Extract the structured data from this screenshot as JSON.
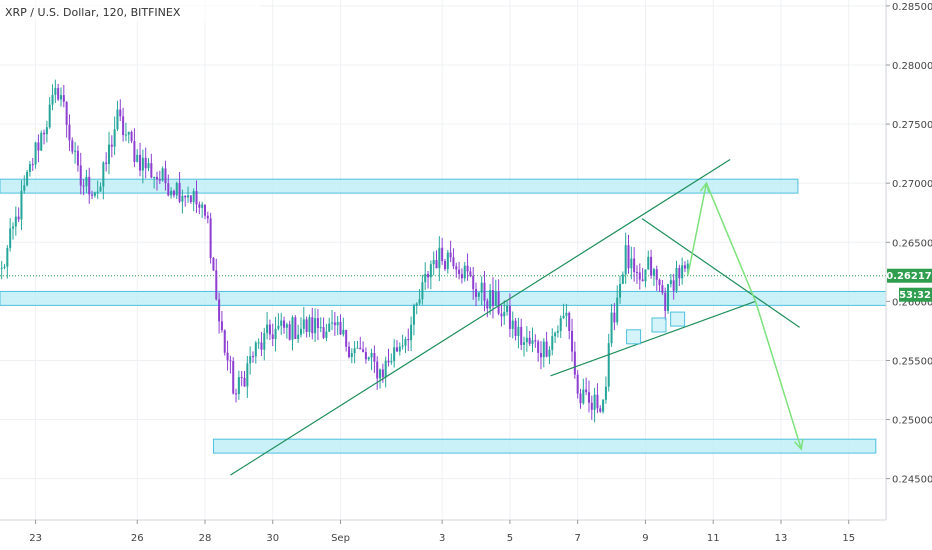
{
  "header": {
    "title": "XRP / U.S. Dollar, 120, BITFINEX"
  },
  "price_axis": {
    "ticks": [
      {
        "value": 0.285,
        "label": "0.28500"
      },
      {
        "value": 0.28,
        "label": "0.28000"
      },
      {
        "value": 0.275,
        "label": "0.27500"
      },
      {
        "value": 0.27,
        "label": "0.27000"
      },
      {
        "value": 0.265,
        "label": "0.26500"
      },
      {
        "value": 0.26,
        "label": "0.26000"
      },
      {
        "value": 0.255,
        "label": "0.25500"
      },
      {
        "value": 0.25,
        "label": "0.25000"
      },
      {
        "value": 0.245,
        "label": "0.24500"
      }
    ],
    "current_price": {
      "value": 0.26217,
      "label": "0.26217"
    },
    "countdown": "53:32"
  },
  "date_axis": {
    "ticks": [
      {
        "day": 23,
        "label": "23"
      },
      {
        "day": 26,
        "label": "26"
      },
      {
        "day": 28,
        "label": "28"
      },
      {
        "day": 30,
        "label": "30"
      },
      {
        "day": 32,
        "label": "Sep"
      },
      {
        "day": 35,
        "label": "3"
      },
      {
        "day": 37,
        "label": "5"
      },
      {
        "day": 39,
        "label": "7"
      },
      {
        "day": 41,
        "label": "9"
      },
      {
        "day": 43,
        "label": "11"
      },
      {
        "day": 45,
        "label": "13"
      },
      {
        "day": 47,
        "label": "15"
      }
    ]
  },
  "colors": {
    "up": "#26a69a",
    "down": "#8e3fd1",
    "zone_fill": "#b9ecf5",
    "zone_stroke": "#4cc0de",
    "trendline": "#1e8e5a",
    "projection": "#7de27d",
    "price_line": "#2e9e4e",
    "grid": "#eef0f3",
    "axis": "#d0d3da"
  },
  "chart_data": {
    "type": "candlestick",
    "symbol": "XRP / U.S. Dollar",
    "interval": "120",
    "exchange": "BITFINEX",
    "x_axis": "day (August numbering; Sep 1 = 32)",
    "ylim": [
      0.2415,
      0.2855
    ],
    "xlim": [
      21.95,
      48.1
    ],
    "key_points": [
      {
        "day": 22.0,
        "price": 0.2625
      },
      {
        "day": 23.0,
        "price": 0.2728
      },
      {
        "day": 23.7,
        "price": 0.2782
      },
      {
        "day": 24.3,
        "price": 0.27
      },
      {
        "day": 24.9,
        "price": 0.2695
      },
      {
        "day": 25.4,
        "price": 0.2755
      },
      {
        "day": 26.0,
        "price": 0.2722
      },
      {
        "day": 26.6,
        "price": 0.2705
      },
      {
        "day": 27.6,
        "price": 0.269
      },
      {
        "day": 28.1,
        "price": 0.2665
      },
      {
        "day": 28.4,
        "price": 0.2585
      },
      {
        "day": 28.9,
        "price": 0.252
      },
      {
        "day": 29.4,
        "price": 0.2555
      },
      {
        "day": 30.0,
        "price": 0.2575
      },
      {
        "day": 31.5,
        "price": 0.258
      },
      {
        "day": 32.0,
        "price": 0.257
      },
      {
        "day": 33.2,
        "price": 0.254
      },
      {
        "day": 34.1,
        "price": 0.258
      },
      {
        "day": 34.7,
        "price": 0.2635
      },
      {
        "day": 35.3,
        "price": 0.264
      },
      {
        "day": 36.0,
        "price": 0.261
      },
      {
        "day": 36.7,
        "price": 0.2595
      },
      {
        "day": 37.4,
        "price": 0.2565
      },
      {
        "day": 38.0,
        "price": 0.256
      },
      {
        "day": 38.7,
        "price": 0.259
      },
      {
        "day": 39.0,
        "price": 0.252
      },
      {
        "day": 39.4,
        "price": 0.251
      },
      {
        "day": 39.8,
        "price": 0.252
      },
      {
        "day": 40.0,
        "price": 0.258
      },
      {
        "day": 40.4,
        "price": 0.264
      },
      {
        "day": 40.8,
        "price": 0.261
      },
      {
        "day": 41.1,
        "price": 0.263
      },
      {
        "day": 41.6,
        "price": 0.26
      },
      {
        "day": 41.9,
        "price": 0.2625
      },
      {
        "day": 42.25,
        "price": 0.2622
      }
    ],
    "horizontal_zones": [
      {
        "day_start": 21.95,
        "day_end": 45.5,
        "price_low": 0.2695,
        "price_high": 0.27
      },
      {
        "day_start": 21.95,
        "day_end": 48.1,
        "price_low": 0.26,
        "price_high": 0.2605
      },
      {
        "day_start": 28.25,
        "day_end": 47.8,
        "price_low": 0.2475,
        "price_high": 0.248
      }
    ],
    "trendlines": [
      {
        "from": {
          "day": 28.75,
          "price": 0.2453
        },
        "to": {
          "day": 43.5,
          "price": 0.272
        }
      },
      {
        "from": {
          "day": 38.2,
          "price": 0.2537
        },
        "to": {
          "day": 44.25,
          "price": 0.26
        }
      },
      {
        "from": {
          "day": 40.9,
          "price": 0.267
        },
        "to": {
          "day": 45.55,
          "price": 0.2578
        }
      }
    ],
    "projection_path": [
      {
        "day": 42.25,
        "price": 0.2622
      },
      {
        "day": 42.8,
        "price": 0.27
      },
      {
        "day": 44.25,
        "price": 0.26
      },
      {
        "day": 45.6,
        "price": 0.2475
      }
    ],
    "marked_lows": [
      {
        "day": 40.65,
        "price": 0.257
      },
      {
        "day": 41.4,
        "price": 0.258
      },
      {
        "day": 41.95,
        "price": 0.2585
      }
    ]
  }
}
